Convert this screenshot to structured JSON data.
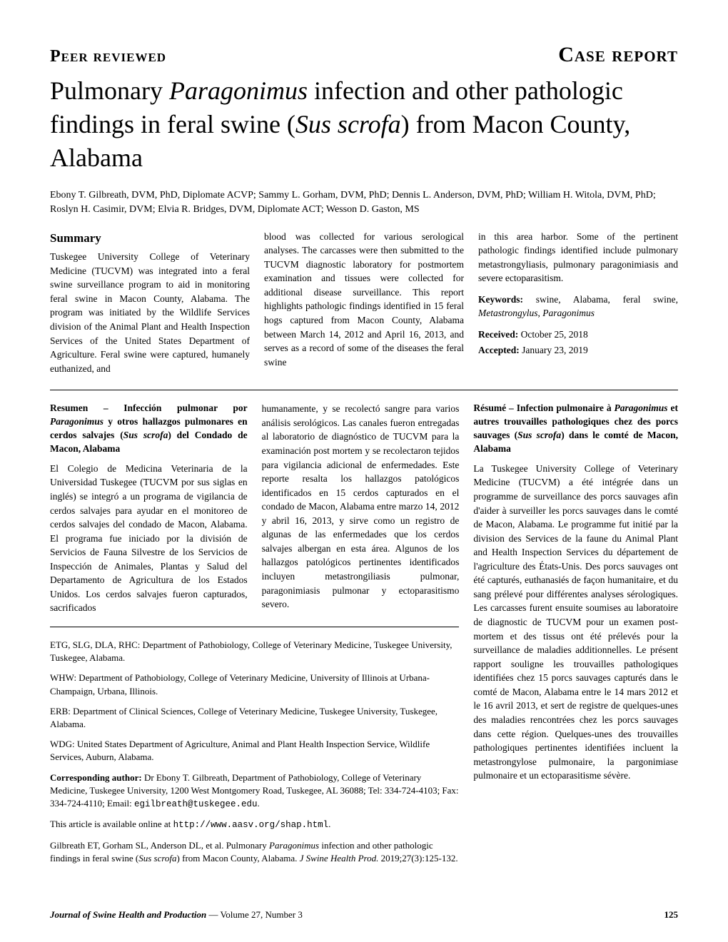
{
  "header": {
    "left_label": "Peer reviewed",
    "right_label": "Case report"
  },
  "title_parts": {
    "p1": "Pulmonary ",
    "p2": "Paragonimus",
    "p3": " infection and other pathologic findings in feral swine (",
    "p4": "Sus scrofa",
    "p5": ") from Macon County, Alabama"
  },
  "authors": "Ebony T. Gilbreath, DVM, PhD, Diplomate ACVP; Sammy L. Gorham, DVM, PhD; Dennis L. Anderson, DVM, PhD; William H. Witola, DVM, PhD; Roslyn H. Casimir, DVM; Elvia R. Bridges, DVM, Diplomate ACT; Wesson D. Gaston, MS",
  "summary": {
    "heading": "Summary",
    "col1": "Tuskegee University College of Veterinary Medicine (TUCVM) was integrated into a feral swine surveillance program to aid in monitoring feral swine in Macon County, Alabama. The program was initiated by the Wildlife Services division of the Animal Plant and Health Inspection Services of the United States Department of Agriculture. Feral swine were captured, humanely euthanized, and",
    "col2": "blood was collected for various serological analyses. The carcasses were then submitted to the TUCVM diagnostic laboratory for postmortem examination and tissues were collected for additional disease surveillance. This report highlights pathologic findings identified in 15 feral hogs captured from Macon County, Alabama between March 14, 2012 and April 16, 2013, and serves as a record of some of the diseases the feral swine",
    "col3_1": "in this area harbor. Some of the pertinent pathologic findings identified include pulmonary metastrongyliasis, pulmonary paragonimiasis and severe ectoparasitism.",
    "keywords_label": "Keywords:",
    "keywords_text_1": " swine, Alabama, feral swine, ",
    "keywords_text_2": "Metastrongylus",
    "keywords_text_3": ", ",
    "keywords_text_4": "Paragonimus",
    "received_label": "Received:",
    "received_date": " October 25, 2018",
    "accepted_label": "Accepted:",
    "accepted_date": " January 23, 2019"
  },
  "resumen": {
    "heading_1": "Resumen – Infección pulmonar por ",
    "heading_2": "Paragonimus",
    "heading_3": " y otros hallazgos pulmonares en cerdos salvajes (",
    "heading_4": "Sus scrofa",
    "heading_5": ") del Condado de Macon, Alabama",
    "body1": "El Colegio de Medicina Veterinaria de la Universidad Tuskegee (TUCVM por sus siglas en inglés) se integró a un programa de vigilancia de cerdos salvajes para ayudar en el monitoreo de cerdos salvajes del condado de Macon, Alabama. El programa fue iniciado por la división de Servicios de Fauna Silvestre de los Servicios de Inspección de Animales, Plantas y Salud del Departamento de Agricultura de los Estados Unidos. Los cerdos salvajes fueron capturados, sacrificados",
    "body2": "humanamente, y se recolectó sangre para varios análisis serológicos. Las canales fueron entregadas al laboratorio de diagnóstico de TUCVM para la examinación post mortem y se recolectaron tejidos para vigilancia adicional de enfermedades. Este reporte resalta los hallazgos patológicos identificados en 15 cerdos capturados en el condado de Macon, Alabama entre marzo 14, 2012 y abril 16, 2013, y sirve como un registro de algunas de las enfermedades que los cerdos salvajes albergan en esta área. Algunos de los hallazgos patológicos pertinentes identificados incluyen metastrongiliasis pulmonar, paragonimiasis pulmonar y ectoparasitismo severo."
  },
  "resume_fr": {
    "heading_1": "Résumé – Infection pulmonaire à ",
    "heading_2": "Paragonimus",
    "heading_3": " et autres trouvailles pathologiques chez des porcs sauvages (",
    "heading_4": "Sus scrofa",
    "heading_5": ") dans le comté de Macon, Alabama",
    "body": "La Tuskegee University College of Veterinary Medicine (TUCVM) a été intégrée dans un programme de surveillance des porcs sauvages afin d'aider à surveiller les porcs sauvages dans le comté de Macon, Alabama. Le programme fut initié par la division des Services de la faune du Animal Plant and Health Inspection Services du département de l'agriculture des États-Unis. Des porcs sauvages ont été capturés, euthanasiés de façon humanitaire, et du sang prélevé pour différentes analyses sérologiques. Les carcasses furent ensuite soumises au laboratoire de diagnostic de TUCVM pour un examen post-mortem et des tissus ont été prélevés pour la surveillance de maladies additionnelles. Le présent rapport souligne les trouvailles pathologiques identifiées chez 15 porcs sauvages capturés dans le comté de Macon, Alabama entre le 14 mars 2012 et le 16 avril 2013, et sert de registre de quelques-unes des maladies rencontrées chez les porcs sauvages dans cette région. Quelques-unes des trouvailles pathologiques pertinentes identifiées incluent la metastrongylose pulmonaire, la pargonimiase pulmonaire et un ectoparasitisme sévère."
  },
  "affiliations": {
    "a1": "ETG, SLG, DLA, RHC: Department of Pathobiology, College of Veterinary Medicine, Tuskegee University, Tuskegee, Alabama.",
    "a2": "WHW: Department of Pathobiology, College of Veterinary Medicine, University of Illinois at Urbana-Champaign, Urbana, Illinois.",
    "a3": "ERB: Department of Clinical Sciences, College of Veterinary Medicine, Tuskegee University, Tuskegee, Alabama.",
    "a4": "WDG: United States Department of Agriculture, Animal and Plant Health Inspection Service, Wildlife Services, Auburn, Alabama.",
    "corr_label": "Corresponding author:",
    "corr_text": " Dr Ebony T. Gilbreath, Department of Pathobiology, College of Veterinary Medicine, Tuskegee University, 1200 West Montgomery Road, Tuskegee, AL 36088; Tel: 334-724-4103; Fax: 334-724-4110; Email: ",
    "corr_email": "egilbreath@tuskegee.edu",
    "online_text": "This article is available online at ",
    "online_url": "http://www.aasv.org/shap.html",
    "citation_1": "Gilbreath ET, Gorham SL, Anderson DL, et al. Pulmonary ",
    "citation_2": "Paragonimus",
    "citation_3": " infection and other pathologic findings in feral swine (",
    "citation_4": "Sus scrofa",
    "citation_5": ") from Macon County, Alabama. ",
    "citation_6": "J Swine Health Prod.",
    "citation_7": " 2019;27(3):125-132."
  },
  "footer": {
    "journal": "Journal of Swine Health and Production",
    "issue": " — Volume 27, Number 3",
    "page": "125"
  },
  "style": {
    "body_width": 1020,
    "body_height": 1320,
    "background_color": "#ffffff",
    "text_color": "#000000",
    "title_fontsize": 36,
    "section_label_fontsize": 24,
    "report_type_fontsize": 30,
    "body_fontsize": 13.5,
    "authors_fontsize": 14,
    "summary_heading_fontsize": 17,
    "affiliation_fontsize": 13,
    "footer_fontsize": 13,
    "font_family": "Georgia, 'Times New Roman', serif",
    "mono_font_family": "'Courier New', monospace",
    "divider_color": "#000000"
  }
}
